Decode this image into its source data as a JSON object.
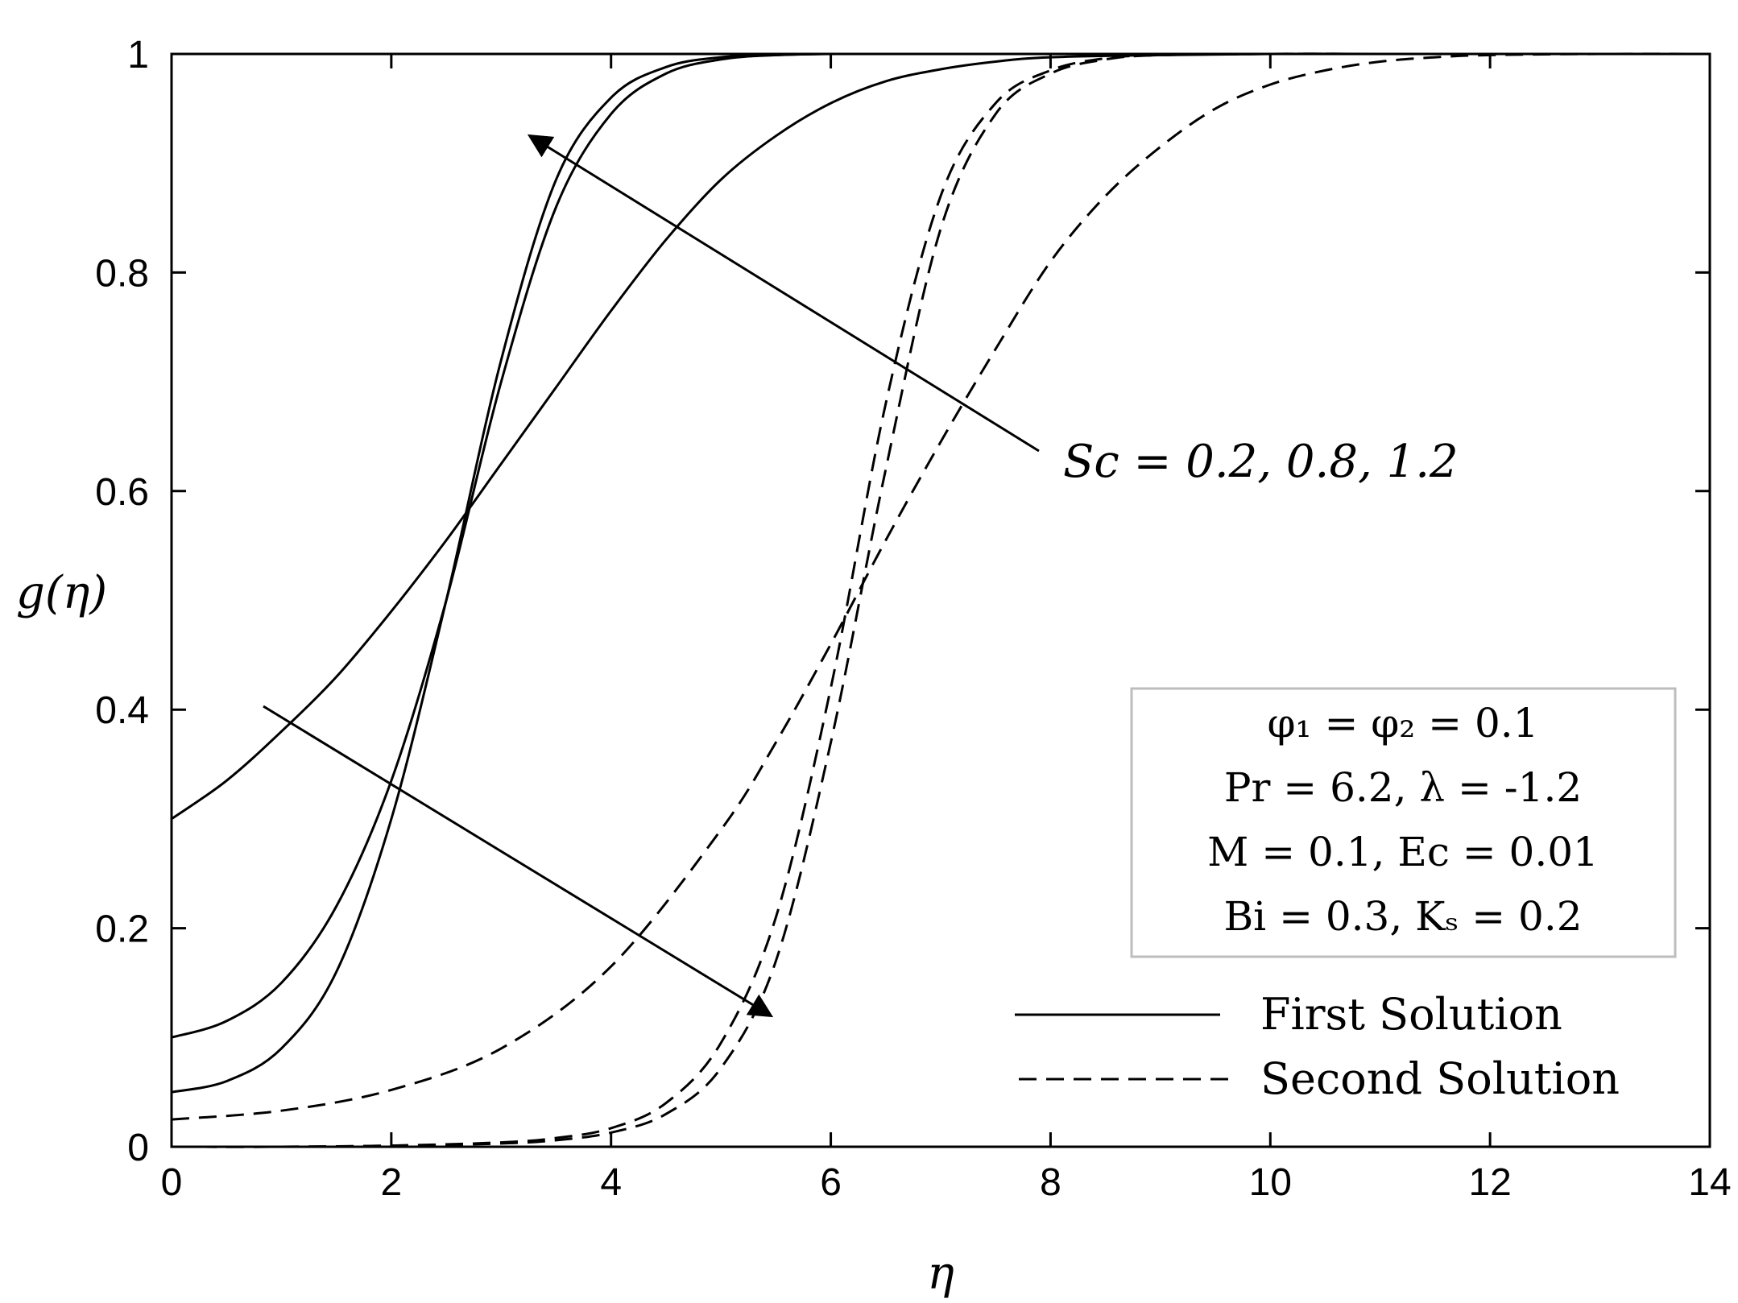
{
  "chart_data": {
    "type": "line",
    "title": "",
    "xlabel": "η",
    "ylabel": "g(η)",
    "xlim": [
      0,
      14
    ],
    "ylim": [
      0,
      1
    ],
    "xticks": [
      "0",
      "2",
      "4",
      "6",
      "8",
      "10",
      "12",
      "14"
    ],
    "yticks": [
      "0",
      "0.2",
      "0.4",
      "0.6",
      "0.8",
      "1"
    ],
    "grid": false,
    "legend": {
      "placement": "bottom-right",
      "entries": [
        {
          "label": "First Solution",
          "style": "solid"
        },
        {
          "label": "Second Solution",
          "style": "dashed"
        }
      ]
    },
    "info_box": [
      "φ₁ = φ₂ = 0.1",
      "Pr = 6.2, λ = -1.2",
      "M = 0.1, Ec = 0.01",
      "Bi = 0.3, Kₛ = 0.2"
    ],
    "annotation": "Sc = 0.2, 0.8, 1.2",
    "series": [
      {
        "style": "solid",
        "x": [
          0,
          0.5,
          1,
          1.5,
          2,
          2.5,
          3,
          3.5,
          4,
          4.5,
          5,
          5.5,
          6,
          6.5,
          7,
          7.5,
          8,
          9,
          10,
          11,
          12,
          13,
          14
        ],
        "y": [
          0.3,
          0.335,
          0.38,
          0.43,
          0.49,
          0.555,
          0.625,
          0.695,
          0.765,
          0.83,
          0.885,
          0.925,
          0.955,
          0.975,
          0.986,
          0.993,
          0.997,
          0.999,
          1,
          1,
          1,
          1,
          1
        ]
      },
      {
        "style": "solid",
        "x": [
          0,
          0.5,
          1,
          1.5,
          2,
          2.5,
          3,
          3.5,
          4,
          4.5,
          5,
          5.5,
          6,
          7,
          8,
          9,
          10,
          11,
          12,
          13,
          14
        ],
        "y": [
          0.1,
          0.115,
          0.15,
          0.22,
          0.335,
          0.5,
          0.7,
          0.86,
          0.945,
          0.982,
          0.995,
          0.999,
          1,
          1,
          1,
          1,
          1,
          1,
          1,
          1,
          1
        ]
      },
      {
        "style": "solid",
        "x": [
          0,
          0.5,
          1,
          1.5,
          2,
          2.5,
          3,
          3.5,
          4,
          4.5,
          5,
          5.5,
          6,
          7,
          8,
          9,
          10,
          11,
          12,
          13,
          14
        ],
        "y": [
          0.05,
          0.06,
          0.09,
          0.16,
          0.3,
          0.5,
          0.72,
          0.885,
          0.96,
          0.988,
          0.997,
          0.999,
          1,
          1,
          1,
          1,
          1,
          1,
          1,
          1,
          1
        ]
      },
      {
        "style": "dashed",
        "x": [
          0,
          1,
          2,
          3,
          4,
          5,
          5.5,
          6,
          6.5,
          7,
          7.5,
          8,
          8.5,
          9,
          9.5,
          10,
          10.5,
          11,
          11.5,
          12,
          13,
          14
        ],
        "y": [
          0.025,
          0.033,
          0.052,
          0.09,
          0.165,
          0.29,
          0.37,
          0.46,
          0.555,
          0.645,
          0.73,
          0.81,
          0.87,
          0.915,
          0.95,
          0.972,
          0.985,
          0.993,
          0.997,
          0.999,
          1,
          1
        ]
      },
      {
        "style": "dashed",
        "x": [
          0,
          1,
          2,
          3,
          3.5,
          4,
          4.5,
          5,
          5.5,
          6,
          6.5,
          7,
          7.5,
          8,
          8.5,
          9,
          10,
          11,
          12,
          13,
          14
        ],
        "y": [
          0,
          0,
          0.001,
          0.004,
          0.008,
          0.017,
          0.04,
          0.095,
          0.21,
          0.42,
          0.68,
          0.87,
          0.955,
          0.985,
          0.996,
          0.999,
          1,
          1,
          1,
          1,
          1
        ]
      },
      {
        "style": "dashed",
        "x": [
          0,
          1,
          2,
          3,
          3.5,
          4,
          4.5,
          5,
          5.5,
          6,
          6.5,
          7,
          7.5,
          8,
          8.5,
          9,
          10,
          11,
          12,
          13,
          14
        ],
        "y": [
          0,
          0,
          0.001,
          0.003,
          0.006,
          0.013,
          0.03,
          0.072,
          0.17,
          0.37,
          0.62,
          0.84,
          0.945,
          0.982,
          0.995,
          0.999,
          1,
          1,
          1,
          1,
          1
        ]
      }
    ]
  }
}
